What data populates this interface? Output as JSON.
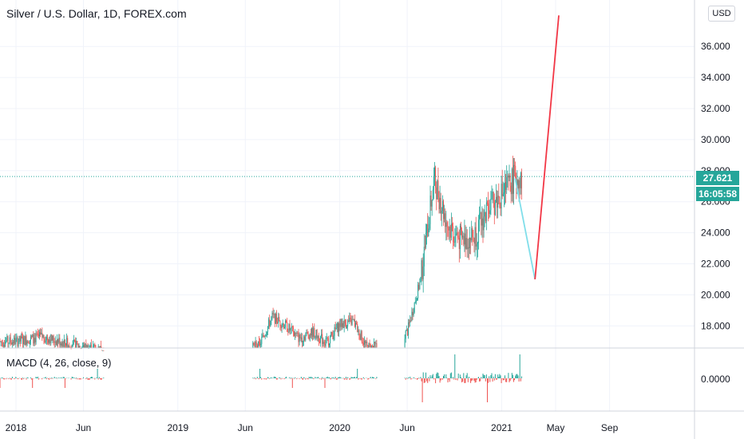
{
  "header": {
    "title": "Silver / U.S. Dollar, 1D, FOREX.com",
    "currency_button": "USD"
  },
  "macd": {
    "label": "MACD (4, 26, close, 9)",
    "zero_label": "0.0000"
  },
  "price_tags": {
    "last_price": "27.621",
    "countdown": "16:05:58"
  },
  "colors": {
    "up": "#26a69a",
    "down": "#ef5350",
    "projection_down": "#80deea",
    "projection_up": "#f23645",
    "last_price_line": "#26a69a"
  },
  "chart_data": {
    "type": "candlestick",
    "title": "Silver / U.S. Dollar, 1D, FOREX.com",
    "y_ticks": [
      "18.000",
      "20.000",
      "22.000",
      "24.000",
      "26.000",
      "28.000",
      "30.000",
      "32.000",
      "34.000",
      "36.000"
    ],
    "x_ticks": [
      "2018",
      "Jun",
      "2019",
      "Jun",
      "2020",
      "Jun",
      "2021",
      "May",
      "Sep"
    ],
    "last_price": 27.621,
    "price_path": [
      [
        "2018",
        17.0
      ],
      [
        "2018-03",
        17.3
      ],
      [
        "2018-06",
        16.6
      ],
      [
        "2019-06",
        16.5
      ],
      [
        "2019-07",
        16.7
      ],
      [
        "2019-08",
        18.6
      ],
      [
        "2019-09",
        18.0
      ],
      [
        "2019-10",
        17.2
      ],
      [
        "2019-11",
        17.6
      ],
      [
        "2019-12",
        16.9
      ],
      [
        "2020-01",
        18.1
      ],
      [
        "2020-02",
        18.3
      ],
      [
        "2020-03",
        16.6
      ],
      [
        "2020-05",
        16.8
      ],
      [
        "2020-06",
        17.6
      ],
      [
        "2020-07",
        21.0
      ],
      [
        "2020-08",
        27.5
      ],
      [
        "2020-09",
        24.5
      ],
      [
        "2020-10",
        23.5
      ],
      [
        "2020-11",
        23.8
      ],
      [
        "2020-12",
        25.5
      ],
      [
        "2021-01",
        26.5
      ],
      [
        "2021-02",
        27.6
      ]
    ],
    "projection": [
      {
        "from": [
          "2021-02",
          27.5
        ],
        "to": [
          "2021-03",
          21.0
        ],
        "color": "cyan"
      },
      {
        "from": [
          "2021-03",
          21.0
        ],
        "to": [
          "2021-05",
          38.0
        ],
        "color": "red"
      }
    ]
  }
}
